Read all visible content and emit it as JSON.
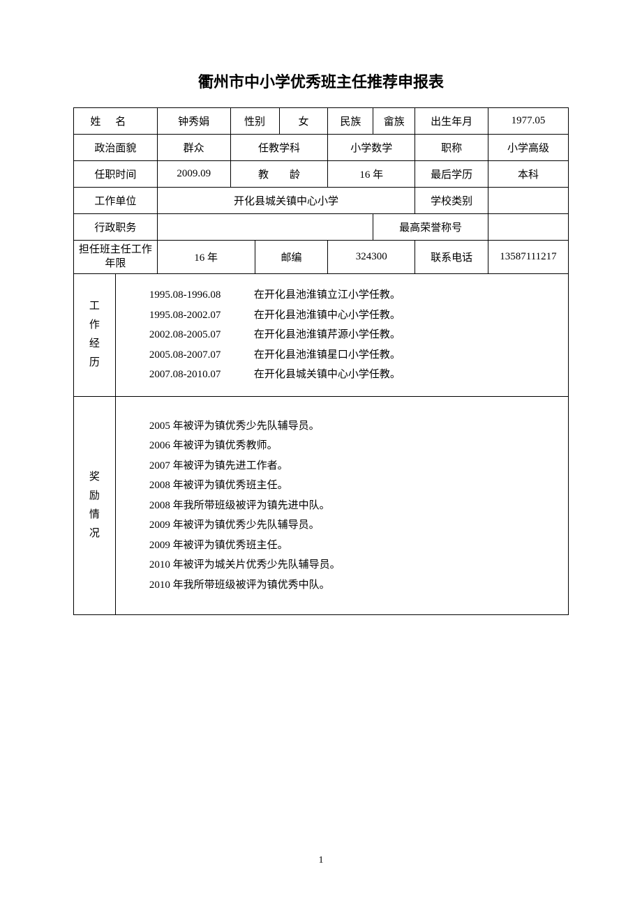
{
  "title": "衢州市中小学优秀班主任推荐申报表",
  "row1": {
    "name_label": "姓名",
    "name": "钟秀娟",
    "gender_label": "性别",
    "gender": "女",
    "nation_label": "民族",
    "nation": "畲族",
    "birth_label": "出生年月",
    "birth": "1977.05"
  },
  "row2": {
    "politics_label": "政治面貌",
    "politics": "群众",
    "subject_label": "任教学科",
    "subject": "小学数学",
    "title_label": "职称",
    "title": "小学高级"
  },
  "row3": {
    "start_label": "任职时间",
    "start": "2009.09",
    "age_label": "教　　龄",
    "age": "16 年",
    "edu_label": "最后学历",
    "edu": "本科"
  },
  "row4": {
    "unit_label": "工作单位",
    "unit": "开化县城关镇中心小学",
    "school_type_label": "学校类别",
    "school_type": ""
  },
  "row5": {
    "admin_label": "行政职务",
    "admin": "",
    "honor_label": "最高荣誉称号",
    "honor": ""
  },
  "row6": {
    "years_label": "担任班主任工作年限",
    "years": "16 年",
    "zip_label": "邮编",
    "zip": "324300",
    "phone_label": "联系电话",
    "phone": "13587111217"
  },
  "work_history": {
    "label": "工作经历",
    "items": [
      {
        "date": "1995.08-1996.08",
        "text": "在开化县池淮镇立江小学任教。"
      },
      {
        "date": "1995.08-2002.07",
        "text": "在开化县池淮镇中心小学任教。"
      },
      {
        "date": "2002.08-2005.07",
        "text": "在开化县池淮镇芹源小学任教。"
      },
      {
        "date": "2005.08-2007.07",
        "text": "在开化县池淮镇星口小学任教。"
      },
      {
        "date": "2007.08-2010.07",
        "text": "在开化县城关镇中心小学任教。"
      }
    ]
  },
  "awards": {
    "label": "奖励情况",
    "items": [
      "2005 年被评为镇优秀少先队辅导员。",
      "2006 年被评为镇优秀教师。",
      "2007 年被评为镇先进工作者。",
      "2008 年被评为镇优秀班主任。",
      "2008 年我所带班级被评为镇先进中队。",
      "2009 年被评为镇优秀少先队辅导员。",
      "2009 年被评为镇优秀班主任。",
      "2010 年被评为城关片优秀少先队辅导员。",
      "2010 年我所带班级被评为镇优秀中队。"
    ]
  },
  "page_number": "1"
}
